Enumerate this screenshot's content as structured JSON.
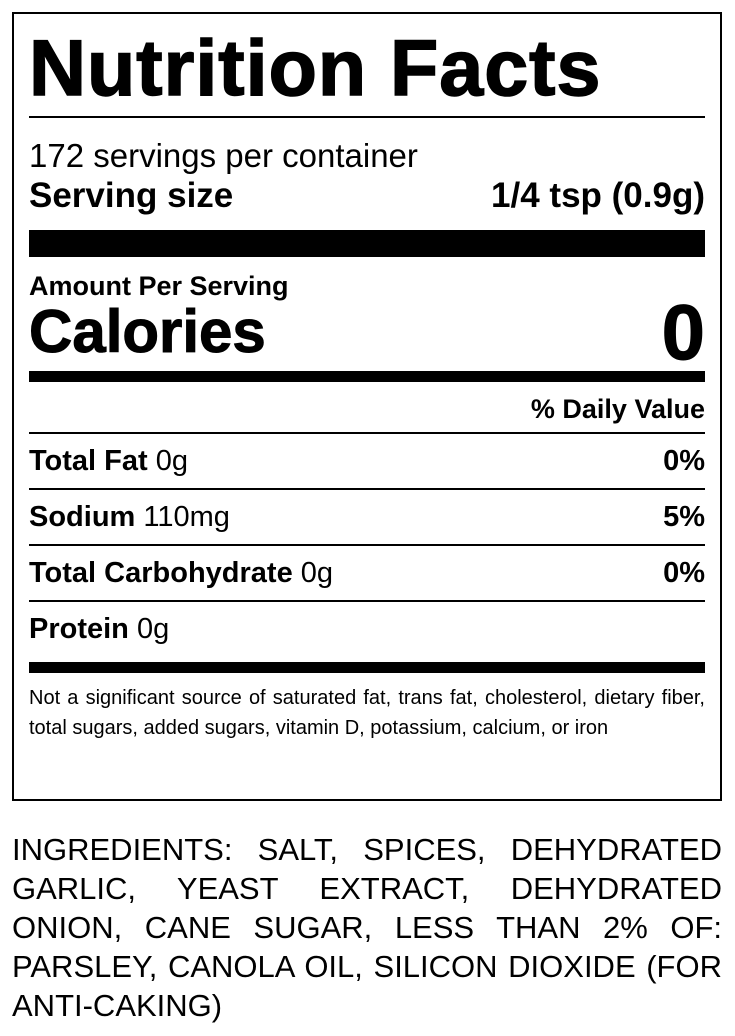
{
  "label": {
    "title": "Nutrition Facts",
    "servings": "172 servings per container",
    "serving_size_label": "Serving size",
    "serving_size": "1/4 tsp (0.9g)",
    "amount_per_serving": "Amount Per Serving",
    "calories_label": "Calories",
    "calories": "0",
    "daily_value_header": "% Daily Value",
    "nutrients": [
      {
        "name": "Total Fat",
        "amount": "0g",
        "dv": "0%"
      },
      {
        "name": "Sodium",
        "amount": "110mg",
        "dv": "5%"
      },
      {
        "name": "Total Carbohydrate",
        "amount": "0g",
        "dv": "0%"
      },
      {
        "name": "Protein",
        "amount": "0g"
      }
    ],
    "footnote": "Not a significant source of saturated fat, trans fat, cholesterol, dietary fiber, total sugars, added sugars, vitamin D, potassium, calcium, or iron"
  },
  "ingredients": "INGREDIENTS: SALT, SPICES, DEHYDRATED GARLIC, YEAST EXTRACT, DEHYDRATED ONION, CANE SUGAR, LESS THAN 2% OF: PARSLEY, CANOLA OIL, SILICON DIOXIDE (FOR ANTI-CAKING)"
}
